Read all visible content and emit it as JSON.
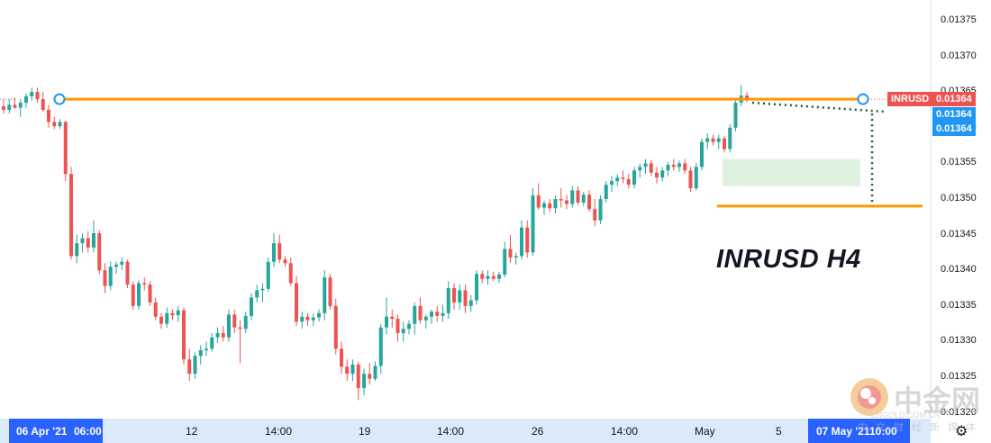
{
  "chart_data": {
    "type": "candlestick",
    "symbol": "INRUSD",
    "title": "INRUSD H4",
    "price_axis": {
      "ticks": [
        "0.01375",
        "0.01370",
        "0.01365",
        "0.01360",
        "0.01355",
        "0.01350",
        "0.01345",
        "0.01340",
        "0.01335",
        "0.01330",
        "0.01325",
        "0.01320"
      ],
      "ylim": [
        0.013192,
        0.013779
      ]
    },
    "time_axis": {
      "labels": [
        "06 Apr '21",
        "06:00",
        "12",
        "14:00",
        "19",
        "14:00",
        "26",
        "14:00",
        "May",
        "5",
        "07 May '21",
        "10:00"
      ],
      "highlighted": [
        "06 Apr '21",
        "06:00",
        "07 May '21",
        "10:00"
      ]
    },
    "price_labels": [
      {
        "text": "INRUSD",
        "value": "0.01364",
        "color": "#ef5350"
      },
      {
        "text": "",
        "value": "0.01364",
        "color": "#2196f3"
      },
      {
        "text": "",
        "value": "0.01364",
        "color": "#2196f3"
      }
    ],
    "levels": [
      {
        "name": "resistance",
        "price": 0.01364,
        "color": "#ff9800"
      },
      {
        "name": "support",
        "price": 0.01349,
        "color": "#ff9800"
      }
    ],
    "consolidation_box": {
      "price_top": 0.013556,
      "price_bottom": 0.013518
    },
    "candles": [
      [
        0.01363,
        0.01364,
        0.01362,
        0.013625
      ],
      [
        0.013625,
        0.01364,
        0.01362,
        0.013632
      ],
      [
        0.013632,
        0.013642,
        0.013626,
        0.013628
      ],
      [
        0.013628,
        0.01364,
        0.013615,
        0.013635
      ],
      [
        0.013635,
        0.013648,
        0.013628,
        0.013644
      ],
      [
        0.013644,
        0.013656,
        0.013638,
        0.01365
      ],
      [
        0.01365,
        0.013656,
        0.013635,
        0.01364
      ],
      [
        0.01364,
        0.01365,
        0.013622,
        0.013625
      ],
      [
        0.013625,
        0.013632,
        0.0136,
        0.013608
      ],
      [
        0.013608,
        0.013615,
        0.013598,
        0.013602
      ],
      [
        0.013602,
        0.013612,
        0.013598,
        0.013608
      ],
      [
        0.013608,
        0.01361,
        0.013525,
        0.013535
      ],
      [
        0.013535,
        0.013545,
        0.013415,
        0.01342
      ],
      [
        0.01342,
        0.01345,
        0.01341,
        0.013438
      ],
      [
        0.013438,
        0.013452,
        0.013425,
        0.013445
      ],
      [
        0.013445,
        0.013455,
        0.013425,
        0.013432
      ],
      [
        0.013432,
        0.01347,
        0.013425,
        0.013452
      ],
      [
        0.013452,
        0.013456,
        0.013395,
        0.0134
      ],
      [
        0.0134,
        0.01341,
        0.013368,
        0.013378
      ],
      [
        0.013378,
        0.013412,
        0.013372,
        0.013405
      ],
      [
        0.013405,
        0.013412,
        0.013395,
        0.013408
      ],
      [
        0.013408,
        0.013418,
        0.0134,
        0.013412
      ],
      [
        0.013412,
        0.013415,
        0.013375,
        0.01338
      ],
      [
        0.01338,
        0.013385,
        0.013345,
        0.01335
      ],
      [
        0.01335,
        0.013386,
        0.013345,
        0.013382
      ],
      [
        0.013382,
        0.01339,
        0.013372,
        0.01338
      ],
      [
        0.01338,
        0.013385,
        0.01335,
        0.013355
      ],
      [
        0.013355,
        0.013362,
        0.01333,
        0.013335
      ],
      [
        0.013335,
        0.01334,
        0.013318,
        0.013325
      ],
      [
        0.013325,
        0.013348,
        0.01332,
        0.01334
      ],
      [
        0.01334,
        0.013345,
        0.01333,
        0.013337
      ],
      [
        0.013337,
        0.01335,
        0.013328,
        0.013344
      ],
      [
        0.013344,
        0.013348,
        0.013268,
        0.013275
      ],
      [
        0.013275,
        0.01329,
        0.013245,
        0.013255
      ],
      [
        0.013255,
        0.013285,
        0.013248,
        0.01328
      ],
      [
        0.01328,
        0.013295,
        0.013268,
        0.013288
      ],
      [
        0.013288,
        0.0133,
        0.01328,
        0.01329
      ],
      [
        0.01329,
        0.013312,
        0.013286,
        0.013306
      ],
      [
        0.013306,
        0.01332,
        0.013298,
        0.013312
      ],
      [
        0.013312,
        0.013322,
        0.0133,
        0.013306
      ],
      [
        0.013306,
        0.013345,
        0.0133,
        0.013338
      ],
      [
        0.013338,
        0.013345,
        0.013312,
        0.01332
      ],
      [
        0.01332,
        0.01333,
        0.01327,
        0.013318
      ],
      [
        0.013318,
        0.013342,
        0.013312,
        0.013336
      ],
      [
        0.013336,
        0.013368,
        0.01333,
        0.013362
      ],
      [
        0.013362,
        0.01338,
        0.013355,
        0.013372
      ],
      [
        0.013372,
        0.013382,
        0.013355,
        0.013374
      ],
      [
        0.013374,
        0.013418,
        0.01337,
        0.013412
      ],
      [
        0.013412,
        0.013452,
        0.013405,
        0.013438
      ],
      [
        0.013438,
        0.01345,
        0.01341,
        0.013415
      ],
      [
        0.013415,
        0.01342,
        0.013405,
        0.01341
      ],
      [
        0.01341,
        0.013418,
        0.013378,
        0.013382
      ],
      [
        0.013382,
        0.013392,
        0.013322,
        0.013328
      ],
      [
        0.013328,
        0.013342,
        0.013318,
        0.013335
      ],
      [
        0.013335,
        0.01334,
        0.013322,
        0.01333
      ],
      [
        0.01333,
        0.01334,
        0.013322,
        0.013334
      ],
      [
        0.013334,
        0.013345,
        0.013328,
        0.01334
      ],
      [
        0.01334,
        0.0134,
        0.01333,
        0.01339
      ],
      [
        0.01339,
        0.013395,
        0.013345,
        0.01335
      ],
      [
        0.01335,
        0.01336,
        0.013282,
        0.01329
      ],
      [
        0.01329,
        0.0133,
        0.013255,
        0.013265
      ],
      [
        0.013265,
        0.013275,
        0.013245,
        0.013255
      ],
      [
        0.013255,
        0.013275,
        0.013245,
        0.013268
      ],
      [
        0.013268,
        0.013272,
        0.013218,
        0.013235
      ],
      [
        0.013235,
        0.013262,
        0.013225,
        0.013255
      ],
      [
        0.013255,
        0.01327,
        0.01324,
        0.013248
      ],
      [
        0.013248,
        0.013272,
        0.013245,
        0.013266
      ],
      [
        0.013266,
        0.013325,
        0.013255,
        0.01332
      ],
      [
        0.01332,
        0.013362,
        0.01331,
        0.013335
      ],
      [
        0.013335,
        0.013345,
        0.01332,
        0.013332
      ],
      [
        0.013332,
        0.013338,
        0.0133,
        0.013312
      ],
      [
        0.013312,
        0.013328,
        0.0133,
        0.013318
      ],
      [
        0.013318,
        0.01333,
        0.01331,
        0.013325
      ],
      [
        0.013325,
        0.013355,
        0.01331,
        0.01335
      ],
      [
        0.01335,
        0.013362,
        0.013325,
        0.01333
      ],
      [
        0.01333,
        0.013338,
        0.013318,
        0.013335
      ],
      [
        0.013335,
        0.013345,
        0.013325,
        0.013342
      ],
      [
        0.013342,
        0.01335,
        0.013328,
        0.013336
      ],
      [
        0.013336,
        0.013352,
        0.013328,
        0.01334
      ],
      [
        0.01334,
        0.013385,
        0.013332,
        0.013375
      ],
      [
        0.013375,
        0.013382,
        0.013345,
        0.013355
      ],
      [
        0.013355,
        0.01338,
        0.013345,
        0.013372
      ],
      [
        0.013372,
        0.01338,
        0.01334,
        0.01335
      ],
      [
        0.01335,
        0.013365,
        0.013342,
        0.013358
      ],
      [
        0.013358,
        0.0134,
        0.013352,
        0.013395
      ],
      [
        0.013395,
        0.0134,
        0.013382,
        0.013388
      ],
      [
        0.013388,
        0.0134,
        0.01338,
        0.013392
      ],
      [
        0.013392,
        0.013398,
        0.013385,
        0.013388
      ],
      [
        0.013388,
        0.013398,
        0.013382,
        0.013394
      ],
      [
        0.013394,
        0.01344,
        0.01339,
        0.01343
      ],
      [
        0.01343,
        0.01345,
        0.01341,
        0.013418
      ],
      [
        0.013418,
        0.013425,
        0.013408,
        0.01342
      ],
      [
        0.01342,
        0.01347,
        0.013415,
        0.01346
      ],
      [
        0.01346,
        0.01347,
        0.013418,
        0.013425
      ],
      [
        0.013425,
        0.013515,
        0.01342,
        0.013505
      ],
      [
        0.013505,
        0.013522,
        0.013485,
        0.013488
      ],
      [
        0.013488,
        0.013498,
        0.013478,
        0.013494
      ],
      [
        0.013494,
        0.0135,
        0.013482,
        0.013487
      ],
      [
        0.013487,
        0.013505,
        0.01348,
        0.0135
      ],
      [
        0.0135,
        0.013515,
        0.013488,
        0.013498
      ],
      [
        0.013498,
        0.013506,
        0.013486,
        0.013493
      ],
      [
        0.013493,
        0.013518,
        0.013488,
        0.013512
      ],
      [
        0.013512,
        0.013518,
        0.013492,
        0.013495
      ],
      [
        0.013495,
        0.01351,
        0.01349,
        0.013506
      ],
      [
        0.013506,
        0.013512,
        0.013482,
        0.013486
      ],
      [
        0.013486,
        0.0135,
        0.013462,
        0.01347
      ],
      [
        0.01347,
        0.013505,
        0.013465,
        0.0135
      ],
      [
        0.0135,
        0.013525,
        0.013495,
        0.01352
      ],
      [
        0.01352,
        0.013532,
        0.01351,
        0.013525
      ],
      [
        0.013525,
        0.013535,
        0.013518,
        0.01353
      ],
      [
        0.01353,
        0.01354,
        0.013522,
        0.013528
      ],
      [
        0.013528,
        0.013535,
        0.013515,
        0.01352
      ],
      [
        0.01352,
        0.013545,
        0.013515,
        0.01354
      ],
      [
        0.01354,
        0.01355,
        0.01353,
        0.013545
      ],
      [
        0.013545,
        0.013556,
        0.013535,
        0.01355
      ],
      [
        0.01355,
        0.013555,
        0.013532,
        0.013537
      ],
      [
        0.013537,
        0.013545,
        0.013522,
        0.01353
      ],
      [
        0.01353,
        0.013545,
        0.013525,
        0.01354
      ],
      [
        0.01354,
        0.013552,
        0.013532,
        0.013548
      ],
      [
        0.013548,
        0.013556,
        0.01354,
        0.013545
      ],
      [
        0.013545,
        0.013554,
        0.013538,
        0.01355
      ],
      [
        0.01355,
        0.013556,
        0.013535,
        0.01354
      ],
      [
        0.01354,
        0.013545,
        0.01351,
        0.013515
      ],
      [
        0.013515,
        0.01355,
        0.013512,
        0.013545
      ],
      [
        0.013545,
        0.013585,
        0.01354,
        0.01358
      ],
      [
        0.01358,
        0.013592,
        0.01357,
        0.013585
      ],
      [
        0.013585,
        0.01359,
        0.013575,
        0.01358
      ],
      [
        0.01358,
        0.01359,
        0.01357,
        0.013585
      ],
      [
        0.013585,
        0.013588,
        0.013565,
        0.01357
      ],
      [
        0.01357,
        0.013605,
        0.013565,
        0.0136
      ],
      [
        0.0136,
        0.01364,
        0.013595,
        0.013635
      ],
      [
        0.013635,
        0.01366,
        0.01363,
        0.013645
      ],
      [
        0.013645,
        0.01365,
        0.013636,
        0.01364
      ]
    ]
  },
  "watermark": {
    "brand": "中金网",
    "domain": "CNGOLD.COM.CN",
    "tagline": "中文财经新媒体"
  }
}
